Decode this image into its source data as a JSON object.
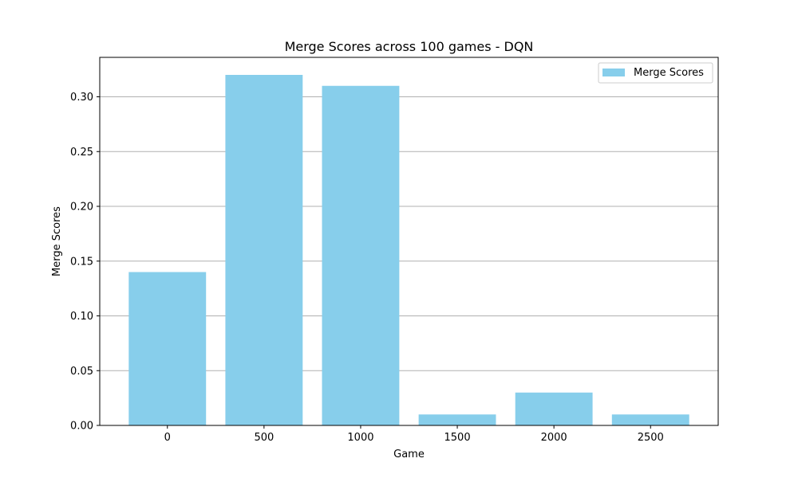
{
  "chart_data": {
    "type": "bar",
    "title": "Merge Scores across 100 games - DQN",
    "xlabel": "Game",
    "ylabel": "Merge Scores",
    "x": [
      0,
      500,
      1000,
      1500,
      2000,
      2500
    ],
    "series": [
      {
        "name": "Merge Scores",
        "values": [
          0.14,
          0.32,
          0.31,
          0.01,
          0.03,
          0.01
        ],
        "color": "#87ceeb"
      }
    ],
    "xlim": [
      -350,
      2850
    ],
    "ylim": [
      0,
      0.336
    ],
    "xticks": [
      "0",
      "500",
      "1000",
      "1500",
      "2000",
      "2500"
    ],
    "yticks": [
      "0.00",
      "0.05",
      "0.10",
      "0.15",
      "0.20",
      "0.25",
      "0.30"
    ],
    "ytick_values": [
      0,
      0.05,
      0.1,
      0.15,
      0.2,
      0.25,
      0.3
    ],
    "grid": "y",
    "grid_color": "#b0b0b0",
    "legend_position": "top-right"
  }
}
